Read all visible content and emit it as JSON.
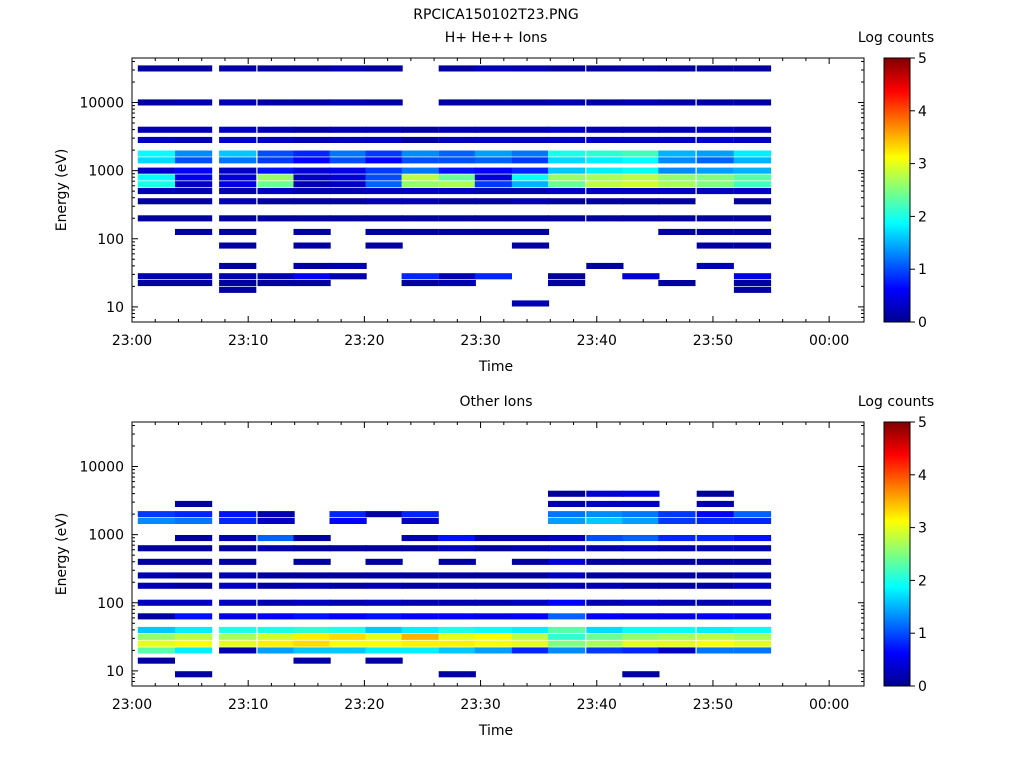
{
  "figure_title": "RPCICA150102T23.PNG",
  "colors": {
    "colormap": [
      "#00008f",
      "#0000ff",
      "#00ffff",
      "#ffff00",
      "#ff0000",
      "#800000"
    ]
  },
  "chart_data": [
    {
      "type": "heatmap",
      "title": "H+ He++ Ions",
      "xlabel": "Time",
      "ylabel": "Energy (eV)",
      "x_ticks": [
        "23:00",
        "23:10",
        "23:20",
        "23:30",
        "23:40",
        "23:50",
        "00:00"
      ],
      "y_ticks": [
        "10",
        "100",
        "1000",
        "10000"
      ],
      "y_scale": "log",
      "ylim": [
        6,
        45000
      ],
      "xlim_minutes": [
        0,
        63
      ],
      "colorbar": {
        "label": "Log counts",
        "range": [
          0,
          5
        ],
        "ticks": [
          "0",
          "1",
          "2",
          "3",
          "4",
          "5"
        ]
      },
      "time_bins_start_min": [
        0.5,
        3.7,
        7.5,
        10.8,
        13.9,
        17.0,
        20.1,
        23.2,
        26.4,
        29.5,
        32.7,
        35.8,
        39.1,
        42.2,
        45.3,
        48.6,
        51.8
      ],
      "bin_width_min": 3.2,
      "bands_eV_log10": [
        {
          "e": 4.5,
          "v": [
            0.1,
            0.1,
            0.15,
            0.1,
            0.1,
            0.2,
            0.1,
            0,
            0.1,
            0.25,
            0.2,
            0.1,
            0.1,
            0.15,
            0.1,
            0.1,
            0.1
          ]
        },
        {
          "e": 4.0,
          "v": [
            0.1,
            0.15,
            0.2,
            0.1,
            0.1,
            0.15,
            0.1,
            0,
            0.1,
            0.1,
            0.1,
            0.15,
            0.1,
            0.15,
            0.1,
            0.1,
            0.1
          ]
        },
        {
          "e": 3.6,
          "v": [
            0.2,
            0.2,
            0.3,
            0.2,
            0.1,
            0.2,
            0.2,
            0.1,
            0.2,
            0.2,
            0.2,
            0.3,
            0.2,
            0.2,
            0.2,
            0.3,
            0.2
          ]
        },
        {
          "e": 3.45,
          "v": [
            0.3,
            0.2,
            0.35,
            0.3,
            0.2,
            0.25,
            0.3,
            0.1,
            0.25,
            0.3,
            0.25,
            0.3,
            0.3,
            0.25,
            0.3,
            0.35,
            0.3
          ]
        },
        {
          "e": 3.25,
          "v": [
            1.9,
            1.3,
            1.6,
            1.0,
            0.8,
            1.2,
            0.9,
            1.3,
            1.1,
            1.4,
            1.2,
            2.0,
            2.1,
            2.2,
            1.5,
            1.4,
            1.8
          ]
        },
        {
          "e": 3.15,
          "v": [
            1.7,
            1.0,
            1.2,
            0.9,
            0.6,
            1.0,
            0.6,
            1.0,
            1.0,
            1.1,
            0.9,
            1.7,
            1.8,
            1.9,
            1.3,
            1.1,
            1.5
          ]
        },
        {
          "e": 3.0,
          "v": [
            0.3,
            0.6,
            0.3,
            0.7,
            0.4,
            0.5,
            0.9,
            1.2,
            0.7,
            0.6,
            0.8,
            1.6,
            1.8,
            1.9,
            1.3,
            1.4,
            1.5
          ]
        },
        {
          "e": 2.9,
          "v": [
            1.9,
            0.5,
            0.4,
            2.6,
            0.3,
            0.4,
            1.0,
            2.8,
            2.4,
            0.4,
            1.9,
            2.6,
            2.7,
            2.8,
            2.6,
            2.5,
            2.3
          ]
        },
        {
          "e": 2.8,
          "v": [
            2.0,
            0.3,
            0.5,
            2.4,
            0.2,
            0.3,
            1.1,
            2.6,
            2.7,
            0.9,
            1.5,
            2.4,
            2.8,
            2.9,
            2.7,
            2.5,
            2.2
          ]
        },
        {
          "e": 2.7,
          "v": [
            0.2,
            0.2,
            0.2,
            0.3,
            0.2,
            0.2,
            0.3,
            0.3,
            0.3,
            0.2,
            0.2,
            0.3,
            0.3,
            0.3,
            0.3,
            0.3,
            0.3
          ]
        },
        {
          "e": 2.55,
          "v": [
            0.1,
            0.1,
            0.2,
            0.1,
            0.1,
            0.1,
            0.2,
            0.2,
            0.1,
            0.1,
            0.2,
            0.1,
            0.1,
            0.1,
            0.1,
            0,
            0.1
          ]
        },
        {
          "e": 2.3,
          "v": [
            0.1,
            0.1,
            0.1,
            0.1,
            0.1,
            0.1,
            0.1,
            0.1,
            0.1,
            0.1,
            0.1,
            0.1,
            0.1,
            0.1,
            0.1,
            0.1,
            0.1
          ]
        },
        {
          "e": 2.1,
          "v": [
            0,
            0.1,
            0.1,
            0,
            0.1,
            0,
            0.1,
            0.1,
            0.1,
            0.1,
            0.1,
            0,
            0,
            0,
            0.1,
            0.1,
            0.1
          ]
        },
        {
          "e": 1.9,
          "v": [
            0,
            0,
            0.1,
            0,
            0.1,
            0,
            0.1,
            0,
            0,
            0,
            0.1,
            0,
            0,
            0,
            0,
            0.1,
            0.1
          ]
        },
        {
          "e": 1.6,
          "v": [
            0,
            0,
            0.1,
            0,
            0.1,
            0.2,
            0,
            0,
            0,
            0,
            0,
            0,
            0.1,
            0,
            0,
            0.2,
            0
          ]
        },
        {
          "e": 1.45,
          "v": [
            0.2,
            0.2,
            0.2,
            0.2,
            0.6,
            0.2,
            0,
            0.8,
            0.2,
            0.8,
            0,
            0.1,
            0,
            0.4,
            0,
            0,
            0.5
          ]
        },
        {
          "e": 1.35,
          "v": [
            0.1,
            0.1,
            0.1,
            0.1,
            0.1,
            0,
            0,
            0.1,
            0.2,
            0,
            0,
            0.1,
            0,
            0,
            0.1,
            0,
            0.1
          ]
        },
        {
          "e": 1.25,
          "v": [
            0,
            0,
            0.1,
            0,
            0,
            0,
            0,
            0,
            0,
            0,
            0,
            0,
            0,
            0,
            0,
            0,
            0.1
          ]
        },
        {
          "e": 1.05,
          "v": [
            0,
            0,
            0,
            0,
            0,
            0,
            0,
            0,
            0,
            0,
            0.2,
            0,
            0,
            0,
            0,
            0,
            0
          ]
        }
      ]
    },
    {
      "type": "heatmap",
      "title": "Other Ions",
      "xlabel": "Time",
      "ylabel": "Energy (eV)",
      "x_ticks": [
        "23:00",
        "23:10",
        "23:20",
        "23:30",
        "23:40",
        "23:50",
        "00:00"
      ],
      "y_ticks": [
        "10",
        "100",
        "1000",
        "10000"
      ],
      "y_scale": "log",
      "ylim": [
        6,
        45000
      ],
      "xlim_minutes": [
        0,
        63
      ],
      "colorbar": {
        "label": "Log counts",
        "range": [
          0,
          5
        ],
        "ticks": [
          "0",
          "1",
          "2",
          "3",
          "4",
          "5"
        ]
      },
      "time_bins_start_min": [
        0.5,
        3.7,
        7.5,
        10.8,
        13.9,
        17.0,
        20.1,
        23.2,
        26.4,
        29.5,
        32.7,
        35.8,
        39.1,
        42.2,
        45.3,
        48.6,
        51.8
      ],
      "bin_width_min": 3.2,
      "bands_eV_log10": [
        {
          "e": 3.6,
          "v": [
            0,
            0,
            0,
            0,
            0,
            0,
            0,
            0,
            0,
            0,
            0,
            0.1,
            0.4,
            0.5,
            0,
            0.1,
            0
          ]
        },
        {
          "e": 3.45,
          "v": [
            0,
            0.1,
            0,
            0,
            0,
            0,
            0,
            0,
            0,
            0,
            0,
            0.2,
            0.3,
            0.3,
            0,
            0.2,
            0
          ]
        },
        {
          "e": 3.3,
          "v": [
            0.9,
            0.8,
            0.7,
            0.2,
            0,
            0.8,
            0.1,
            0.8,
            0,
            0,
            0,
            1.2,
            1.3,
            1.2,
            0.9,
            0.6,
            1.1
          ]
        },
        {
          "e": 3.2,
          "v": [
            1.3,
            1.2,
            0.8,
            0.3,
            0,
            0.6,
            0,
            0.3,
            0,
            0,
            0,
            1.4,
            1.6,
            1.4,
            0.9,
            0.8,
            0.8
          ]
        },
        {
          "e": 2.95,
          "v": [
            0,
            0.1,
            0.2,
            1.1,
            0.1,
            0,
            0,
            0.2,
            0.7,
            0.2,
            0.2,
            0.3,
            1.0,
            1.1,
            0.8,
            0.8,
            0.7
          ]
        },
        {
          "e": 2.8,
          "v": [
            0.1,
            0.1,
            0.1,
            0.2,
            0.1,
            0.1,
            0.1,
            0.1,
            0.3,
            0.1,
            0.2,
            0.3,
            0.2,
            0.3,
            0.2,
            0.2,
            0.2
          ]
        },
        {
          "e": 2.6,
          "v": [
            0.1,
            0.1,
            0.1,
            0,
            0.1,
            0,
            0.1,
            0,
            0.1,
            0,
            0.1,
            0.4,
            0.1,
            0.1,
            0.1,
            0.1,
            0.1
          ]
        },
        {
          "e": 2.4,
          "v": [
            0.2,
            0.1,
            0.2,
            0.1,
            0.1,
            0.1,
            0.1,
            0.1,
            0.1,
            0.1,
            0.1,
            0.3,
            0.1,
            0.1,
            0.1,
            0.1,
            0.2
          ]
        },
        {
          "e": 2.25,
          "v": [
            0.2,
            0.1,
            0.3,
            0.1,
            0.2,
            0.1,
            0.2,
            0.1,
            0.1,
            0.1,
            0.1,
            0.2,
            0.2,
            0.1,
            0.1,
            0.1,
            0.3
          ]
        },
        {
          "e": 2.0,
          "v": [
            0.3,
            0.3,
            0.3,
            0.2,
            0.3,
            0.2,
            0.3,
            0.2,
            0.2,
            0.2,
            0.3,
            0.6,
            0.2,
            0.3,
            0.2,
            0.2,
            0.3
          ]
        },
        {
          "e": 1.8,
          "v": [
            0.1,
            0.7,
            0.5,
            0.6,
            0.7,
            0.6,
            0.7,
            0.6,
            0.6,
            0.5,
            0.6,
            1.1,
            0.6,
            0.5,
            0.5,
            0.6,
            0.5
          ]
        },
        {
          "e": 1.6,
          "v": [
            1.6,
            1.8,
            2.0,
            2.0,
            2.1,
            2.0,
            1.6,
            1.8,
            2.0,
            1.9,
            1.8,
            2.3,
            1.7,
            1.9,
            1.9,
            1.8,
            1.9
          ]
        },
        {
          "e": 1.5,
          "v": [
            2.6,
            2.8,
            2.7,
            2.9,
            3.2,
            3.3,
            3.0,
            3.5,
            3.0,
            3.1,
            2.8,
            2.1,
            2.4,
            2.6,
            2.7,
            2.8,
            2.7
          ]
        },
        {
          "e": 1.4,
          "v": [
            3.0,
            3.1,
            3.0,
            3.2,
            3.3,
            3.1,
            3.1,
            3.2,
            3.2,
            3.1,
            3.0,
            2.5,
            2.7,
            3.0,
            3.0,
            3.1,
            3.0
          ]
        },
        {
          "e": 1.3,
          "v": [
            2.3,
            1.8,
            0.2,
            1.4,
            1.6,
            1.6,
            1.8,
            1.8,
            1.6,
            1.4,
            0.8,
            1.3,
            0.9,
            0.8,
            0.3,
            1.2,
            1.2
          ]
        },
        {
          "e": 1.15,
          "v": [
            0.1,
            0,
            0,
            0,
            0.1,
            0,
            0.1,
            0,
            0,
            0,
            0,
            0,
            0,
            0,
            0,
            0,
            0
          ]
        },
        {
          "e": 0.95,
          "v": [
            0,
            0.1,
            0,
            0,
            0,
            0,
            0,
            0,
            0.1,
            0,
            0,
            0,
            0,
            0.1,
            0,
            0,
            0
          ]
        }
      ]
    }
  ]
}
